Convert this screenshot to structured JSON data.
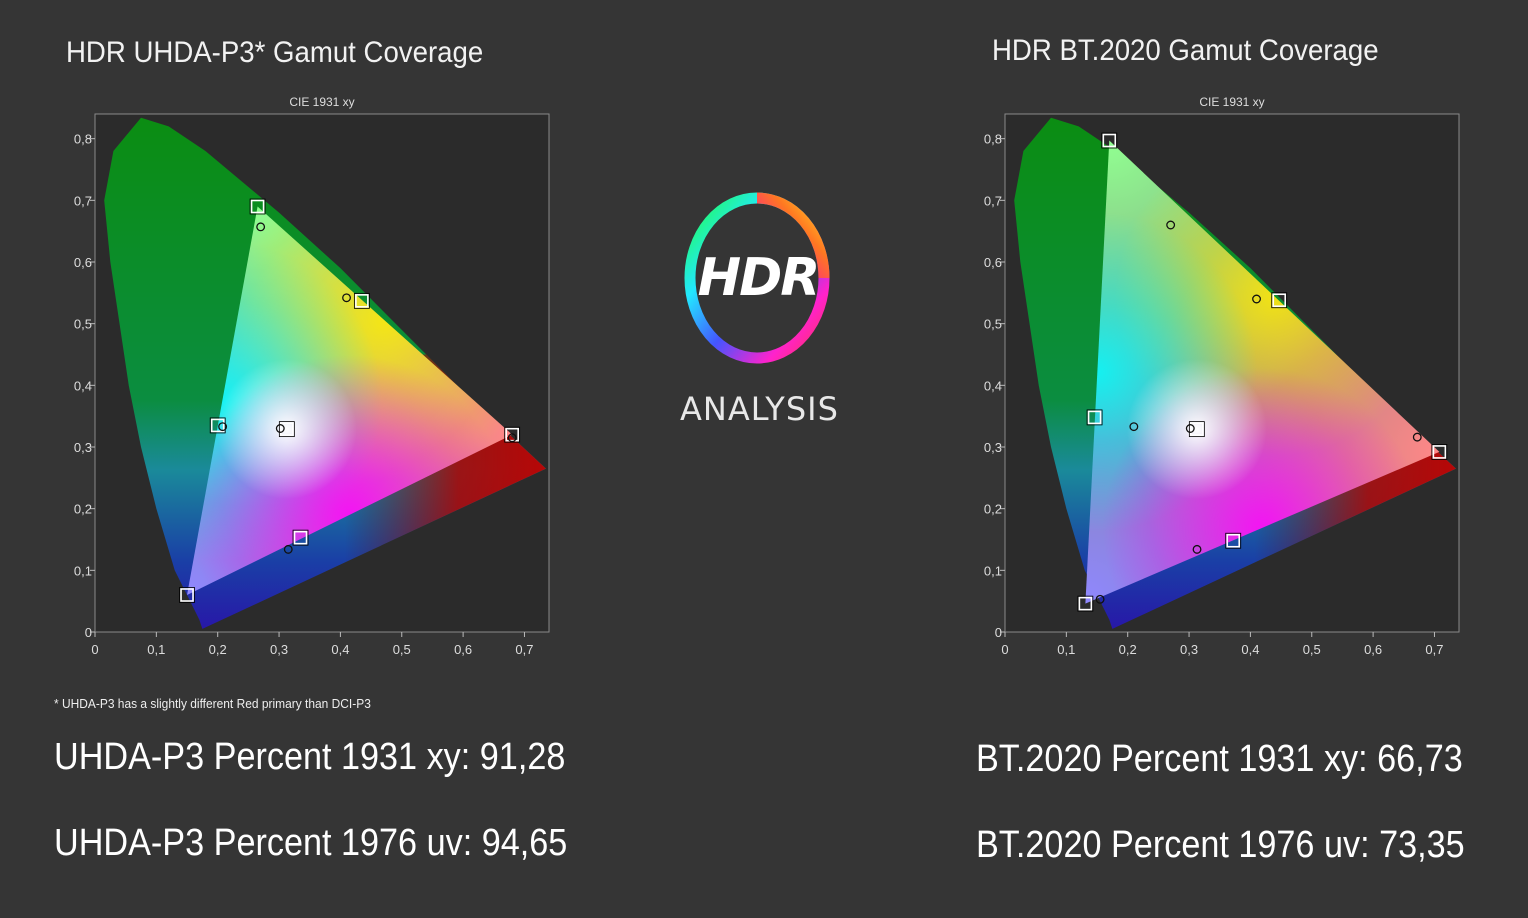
{
  "left_panel": {
    "title": "HDR UHDA-P3* Gamut Coverage",
    "footnote": "* UHDA-P3 has a slightly different Red primary than DCI-P3",
    "stat_xy": "UHDA-P3 Percent 1931 xy: 91,28",
    "stat_uv": "UHDA-P3 Percent 1976 uv: 94,65"
  },
  "right_panel": {
    "title": "HDR BT.2020  Gamut Coverage",
    "stat_xy": "BT.2020 Percent 1931 xy: 66,73",
    "stat_uv": "BT.2020 Percent 1976 uv: 73,35"
  },
  "logo": {
    "main": "HDR",
    "sub": "ANALYSIS"
  },
  "chart_data": [
    {
      "type": "scatter",
      "title": "CIE 1931 xy",
      "xlim": [
        0,
        0.74
      ],
      "ylim": [
        0,
        0.84
      ],
      "x_ticks": [
        "0",
        "0,1",
        "0,2",
        "0,3",
        "0,4",
        "0,5",
        "0,6",
        "0,7"
      ],
      "y_ticks": [
        "0",
        "0,1",
        "0,2",
        "0,3",
        "0,4",
        "0,5",
        "0,6",
        "0,7",
        "0,8"
      ],
      "series": [
        {
          "marker": "square",
          "points": [
            [
              0.265,
              0.69
            ],
            [
              0.15,
              0.06
            ],
            [
              0.68,
              0.32
            ],
            [
              0.435,
              0.537
            ],
            [
              0.2,
              0.335
            ],
            [
              0.335,
              0.153
            ],
            [
              0.3127,
              0.329
            ]
          ]
        },
        {
          "marker": "circle",
          "points": [
            [
              0.27,
              0.657
            ],
            [
              0.41,
              0.542
            ],
            [
              0.68,
              0.315
            ],
            [
              0.208,
              0.333
            ],
            [
              0.315,
              0.134
            ],
            [
              0.302,
              0.33
            ]
          ]
        }
      ]
    },
    {
      "type": "scatter",
      "title": "CIE 1931 xy",
      "xlim": [
        0,
        0.74
      ],
      "ylim": [
        0,
        0.84
      ],
      "x_ticks": [
        "0",
        "0,1",
        "0,2",
        "0,3",
        "0,4",
        "0,5",
        "0,6",
        "0,7"
      ],
      "y_ticks": [
        "0",
        "0,1",
        "0,2",
        "0,3",
        "0,4",
        "0,5",
        "0,6",
        "0,7",
        "0,8"
      ],
      "series": [
        {
          "marker": "square",
          "points": [
            [
              0.17,
              0.797
            ],
            [
              0.131,
              0.046
            ],
            [
              0.708,
              0.292
            ],
            [
              0.447,
              0.538
            ],
            [
              0.146,
              0.348
            ],
            [
              0.372,
              0.148
            ],
            [
              0.3127,
              0.329
            ]
          ]
        },
        {
          "marker": "circle",
          "points": [
            [
              0.27,
              0.66
            ],
            [
              0.41,
              0.54
            ],
            [
              0.672,
              0.316
            ],
            [
              0.21,
              0.333
            ],
            [
              0.313,
              0.134
            ],
            [
              0.302,
              0.33
            ],
            [
              0.155,
              0.053
            ]
          ]
        }
      ]
    }
  ]
}
